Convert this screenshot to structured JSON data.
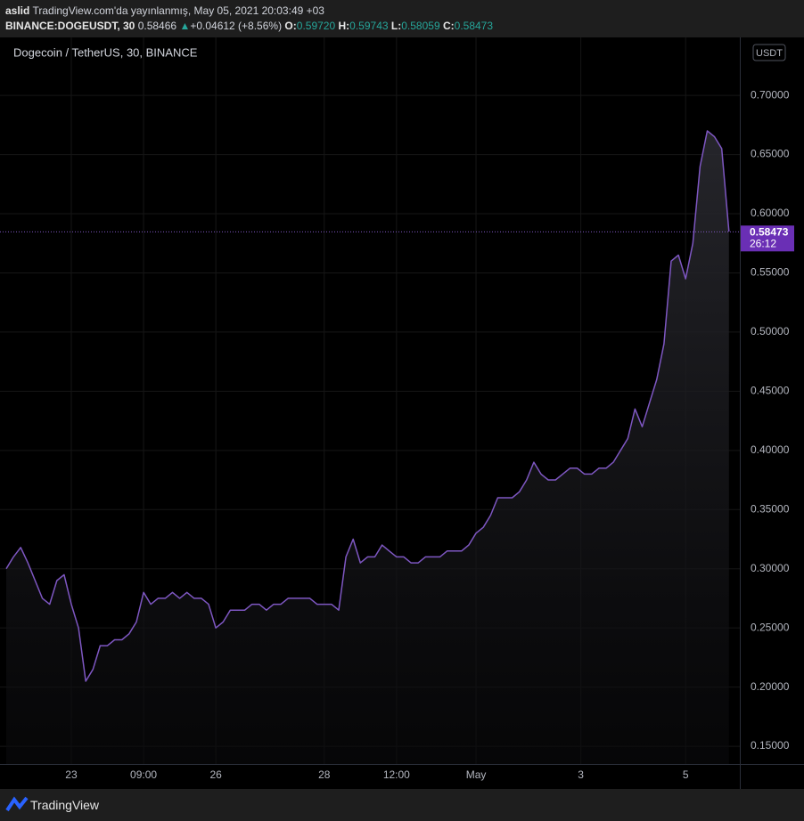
{
  "header": {
    "user": "aslid",
    "published": "TradingView.com'da yayınlanmış, May 05, 2021 20:03:49 +03",
    "symbol": "BINANCE:DOGEUSDT, 30",
    "last": "0.58466",
    "change": "+0.04612 (+8.56%)",
    "open_label": "O:",
    "open": "0.59720",
    "high_label": "H:",
    "high": "0.59743",
    "low_label": "L:",
    "low": "0.58059",
    "close_label": "C:",
    "close": "0.58473"
  },
  "chart_data": {
    "type": "line",
    "title": "Dogecoin / TetherUS, 30, BINANCE",
    "currency": "USDT",
    "color": "#7e57c2",
    "x": [
      0,
      1,
      2,
      3,
      4,
      5,
      6,
      7,
      8,
      9,
      10,
      11,
      12,
      13,
      14,
      15,
      16,
      17,
      18,
      19,
      20,
      21,
      22,
      23,
      24,
      25,
      26,
      27,
      28,
      29,
      30,
      31,
      32,
      33,
      34,
      35,
      36,
      37,
      38,
      39,
      40,
      41,
      42,
      43,
      44,
      45,
      46,
      47,
      48,
      49,
      50,
      51,
      52,
      53,
      54,
      55,
      56,
      57,
      58,
      59,
      60,
      61,
      62,
      63,
      64,
      65,
      66,
      67,
      68,
      69,
      70,
      71,
      72,
      73,
      74,
      75,
      76,
      77,
      78,
      79,
      80,
      81,
      82,
      83,
      84,
      85,
      86,
      87,
      88,
      89,
      90,
      91,
      92,
      93,
      94,
      95,
      96,
      97,
      98,
      99,
      100
    ],
    "values": [
      0.3,
      0.31,
      0.318,
      0.305,
      0.29,
      0.275,
      0.27,
      0.29,
      0.295,
      0.27,
      0.25,
      0.205,
      0.215,
      0.235,
      0.235,
      0.24,
      0.24,
      0.245,
      0.255,
      0.28,
      0.27,
      0.275,
      0.275,
      0.28,
      0.275,
      0.28,
      0.275,
      0.275,
      0.27,
      0.25,
      0.255,
      0.265,
      0.265,
      0.265,
      0.27,
      0.27,
      0.265,
      0.27,
      0.27,
      0.275,
      0.275,
      0.275,
      0.275,
      0.27,
      0.27,
      0.27,
      0.265,
      0.31,
      0.325,
      0.305,
      0.31,
      0.31,
      0.32,
      0.315,
      0.31,
      0.31,
      0.305,
      0.305,
      0.31,
      0.31,
      0.31,
      0.315,
      0.315,
      0.315,
      0.32,
      0.33,
      0.335,
      0.345,
      0.36,
      0.36,
      0.36,
      0.365,
      0.375,
      0.39,
      0.38,
      0.375,
      0.375,
      0.38,
      0.385,
      0.385,
      0.38,
      0.38,
      0.385,
      0.385,
      0.39,
      0.4,
      0.41,
      0.435,
      0.42,
      0.44,
      0.46,
      0.49,
      0.56,
      0.565,
      0.545,
      0.575,
      0.64,
      0.67,
      0.665,
      0.655,
      0.585
    ],
    "xlim": [
      0,
      101.5
    ],
    "xticks": [
      {
        "value": 9,
        "label": "23"
      },
      {
        "value": 19,
        "label": "09:00"
      },
      {
        "value": 29,
        "label": "26"
      },
      {
        "value": 44,
        "label": "28"
      },
      {
        "value": 54,
        "label": "12:00"
      },
      {
        "value": 65,
        "label": "May"
      },
      {
        "value": 79.5,
        "label": "3"
      },
      {
        "value": 94,
        "label": "5"
      }
    ],
    "ylim": [
      0.135,
      0.749
    ],
    "yticks": [
      {
        "value": 0.15,
        "label": "0.15000"
      },
      {
        "value": 0.2,
        "label": "0.20000"
      },
      {
        "value": 0.25,
        "label": "0.25000"
      },
      {
        "value": 0.3,
        "label": "0.30000"
      },
      {
        "value": 0.35,
        "label": "0.35000"
      },
      {
        "value": 0.4,
        "label": "0.40000"
      },
      {
        "value": 0.45,
        "label": "0.45000"
      },
      {
        "value": 0.5,
        "label": "0.50000"
      },
      {
        "value": 0.55,
        "label": "0.55000"
      },
      {
        "value": 0.6,
        "label": "0.60000"
      },
      {
        "value": 0.65,
        "label": "0.65000"
      },
      {
        "value": 0.7,
        "label": "0.70000"
      }
    ],
    "last_price": 0.58473,
    "countdown": "26:12",
    "grid": true
  },
  "footer": {
    "brand": "TradingView"
  }
}
